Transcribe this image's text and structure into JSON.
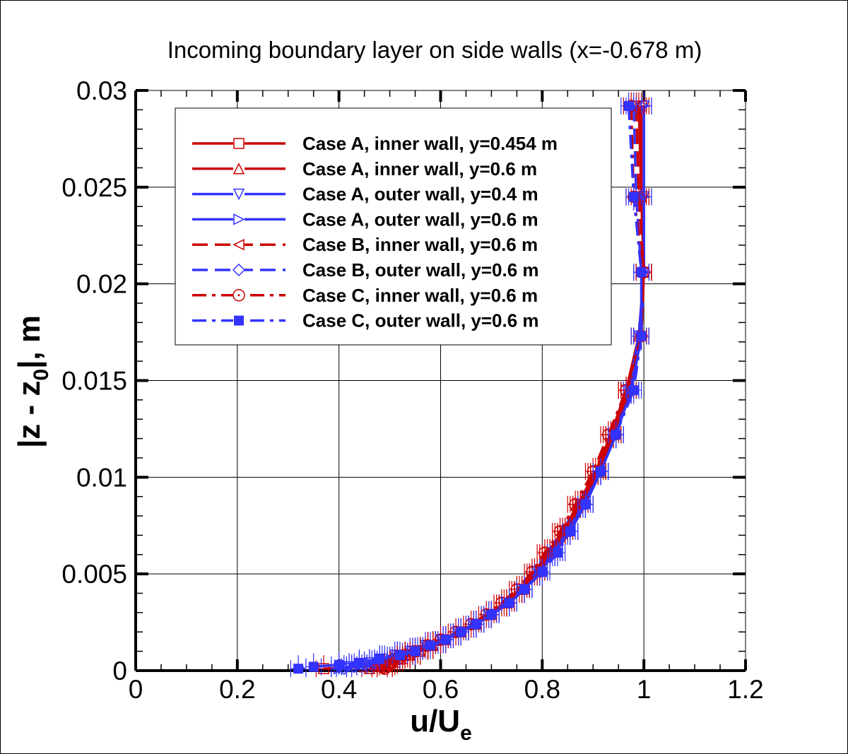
{
  "chart_data": {
    "type": "line",
    "title": "Incoming boundary layer on side walls (x=-0.678 m)",
    "xlabel": "u/U",
    "xlabel_sub": "e",
    "ylabel_pre": "|z - z",
    "ylabel_sub": "0",
    "ylabel_post": "|, m",
    "xlim": [
      0,
      1.2
    ],
    "ylim": [
      0,
      0.03
    ],
    "xticks": [
      "0",
      "0.2",
      "0.4",
      "0.6",
      "0.8",
      "1",
      "1.2"
    ],
    "yticks": [
      "0",
      "0.005",
      "0.01",
      "0.015",
      "0.02",
      "0.025",
      "0.03"
    ],
    "grid": true,
    "legend_position": "top-left",
    "error_bars": {
      "u": 0.015,
      "z": 0.0007
    },
    "z": [
      0.0292,
      0.0245,
      0.0206,
      0.0173,
      0.0145,
      0.0122,
      0.0103,
      0.0086,
      0.0072,
      0.0061,
      0.0051,
      0.0042,
      0.0035,
      0.0029,
      0.0024,
      0.002,
      0.0016,
      0.0013,
      0.001,
      0.0008,
      0.0006,
      0.0004,
      0.0003,
      0.0002,
      0.0001
    ],
    "series": [
      {
        "name": "Case A, inner wall, y=0.454 m",
        "color": "#cc0000",
        "line": "solid",
        "marker": "square-open",
        "u": [
          0.995,
          0.995,
          1.0,
          0.99,
          0.965,
          0.935,
          0.905,
          0.87,
          0.84,
          0.81,
          0.785,
          0.755,
          0.725,
          0.695,
          0.665,
          0.635,
          0.605,
          0.575,
          0.55,
          0.53,
          0.51,
          0.49,
          0.47,
          0.45,
          0.37
        ]
      },
      {
        "name": "Case A, inner wall, y=0.6 m",
        "color": "#cc0000",
        "line": "solid",
        "marker": "triangle-up-open",
        "u": [
          0.99,
          0.995,
          1.0,
          0.99,
          0.97,
          0.94,
          0.91,
          0.875,
          0.845,
          0.815,
          0.79,
          0.76,
          0.73,
          0.7,
          0.67,
          0.64,
          0.61,
          0.585,
          0.56,
          0.54,
          0.52,
          0.5,
          0.49,
          0.48,
          0.46
        ]
      },
      {
        "name": "Case A, outer wall, y=0.4 m",
        "color": "#3333ff",
        "line": "solid",
        "marker": "triangle-down-open",
        "u": [
          1.0,
          1.0,
          1.0,
          0.99,
          0.97,
          0.945,
          0.915,
          0.88,
          0.85,
          0.82,
          0.79,
          0.76,
          0.73,
          0.695,
          0.665,
          0.635,
          0.6,
          0.57,
          0.54,
          0.51,
          0.48,
          0.46,
          0.44,
          0.42,
          0.4
        ]
      },
      {
        "name": "Case A, outer wall, y=0.6 m",
        "color": "#3333ff",
        "line": "solid",
        "marker": "triangle-right-open",
        "u": [
          1.0,
          1.0,
          1.0,
          0.995,
          0.975,
          0.945,
          0.915,
          0.885,
          0.855,
          0.825,
          0.795,
          0.765,
          0.735,
          0.7,
          0.67,
          0.64,
          0.605,
          0.575,
          0.545,
          0.515,
          0.485,
          0.46,
          0.44,
          0.42,
          0.4
        ]
      },
      {
        "name": "Case B, inner wall, y=0.6 m",
        "color": "#cc0000",
        "line": "dashed",
        "marker": "triangle-left-open",
        "u": [
          0.985,
          0.99,
          1.0,
          0.995,
          0.97,
          0.94,
          0.91,
          0.875,
          0.845,
          0.815,
          0.79,
          0.76,
          0.73,
          0.7,
          0.67,
          0.64,
          0.61,
          0.585,
          0.56,
          0.54,
          0.525,
          0.51,
          0.5,
          0.49,
          0.48
        ]
      },
      {
        "name": "Case B, outer wall, y=0.6 m",
        "color": "#3333ff",
        "line": "dashed",
        "marker": "diamond-open",
        "u": [
          0.98,
          0.985,
          0.995,
          0.995,
          0.975,
          0.945,
          0.915,
          0.885,
          0.855,
          0.825,
          0.795,
          0.765,
          0.735,
          0.7,
          0.67,
          0.64,
          0.605,
          0.575,
          0.545,
          0.515,
          0.49,
          0.47,
          0.45,
          0.43,
          0.41
        ]
      },
      {
        "name": "Case C, inner wall, y=0.6 m",
        "color": "#cc0000",
        "line": "dashdot",
        "marker": "circle-dot",
        "u": [
          0.975,
          0.98,
          1.0,
          0.995,
          0.965,
          0.93,
          0.9,
          0.865,
          0.835,
          0.805,
          0.78,
          0.75,
          0.72,
          0.69,
          0.66,
          0.63,
          0.6,
          0.575,
          0.55,
          0.53,
          0.515,
          0.505,
          0.5,
          0.495,
          0.49
        ]
      },
      {
        "name": "Case C, outer wall, y=0.6 m",
        "color": "#3333ff",
        "line": "dashdot",
        "marker": "square-filled",
        "u": [
          0.97,
          0.98,
          0.995,
          0.995,
          0.98,
          0.945,
          0.915,
          0.885,
          0.855,
          0.83,
          0.8,
          0.765,
          0.735,
          0.7,
          0.67,
          0.64,
          0.61,
          0.58,
          0.55,
          0.52,
          0.48,
          0.44,
          0.4,
          0.35,
          0.32
        ]
      }
    ]
  }
}
